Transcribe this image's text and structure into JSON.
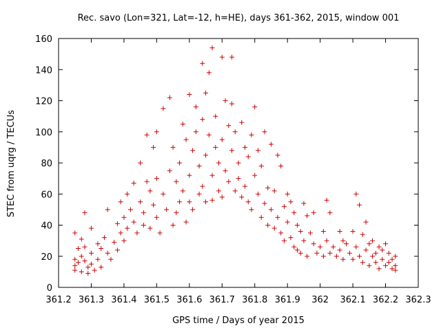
{
  "chart_data": {
    "type": "scatter",
    "title": "Rec. savo (Lon=321, Lat=-12, h=HE), days 361-362, 2015, window 001",
    "xlabel": "GPS time / Days of year 2015",
    "ylabel": "STEC from uqrg / TECUs",
    "xlim": [
      361.2,
      362.3
    ],
    "ylim": [
      0,
      160
    ],
    "xticks": [
      "361.2",
      "361.3",
      "361.4",
      "361.5",
      "361.6",
      "361.7",
      "361.8",
      "361.9",
      "362",
      "362.1",
      "362.2",
      "362.3"
    ],
    "yticks": [
      "0",
      "20",
      "40",
      "60",
      "80",
      "100",
      "120",
      "140",
      "160"
    ],
    "grid": false,
    "marker": "+",
    "series": [
      {
        "color": "#cc0000",
        "points": [
          [
            361.25,
            35
          ],
          [
            361.25,
            18
          ],
          [
            361.25,
            14
          ],
          [
            361.25,
            11
          ],
          [
            361.26,
            25
          ],
          [
            361.26,
            16
          ],
          [
            361.27,
            31
          ],
          [
            361.27,
            20
          ],
          [
            361.27,
            10
          ],
          [
            361.28,
            48
          ],
          [
            361.28,
            26
          ],
          [
            361.28,
            17
          ],
          [
            361.29,
            13
          ],
          [
            361.29,
            9
          ],
          [
            361.3,
            38
          ],
          [
            361.3,
            22
          ],
          [
            361.3,
            15
          ],
          [
            361.31,
            11
          ],
          [
            361.32,
            18
          ],
          [
            361.32,
            28
          ],
          [
            361.33,
            13
          ],
          [
            361.33,
            25
          ],
          [
            361.34,
            32
          ],
          [
            361.35,
            50
          ],
          [
            361.35,
            22
          ],
          [
            361.36,
            18
          ],
          [
            361.37,
            29
          ],
          [
            361.38,
            24
          ],
          [
            361.38,
            41
          ],
          [
            361.39,
            55
          ],
          [
            361.39,
            35
          ],
          [
            361.4,
            30
          ],
          [
            361.4,
            45
          ],
          [
            361.41,
            60
          ],
          [
            361.41,
            38
          ],
          [
            361.42,
            50
          ],
          [
            361.43,
            67
          ],
          [
            361.43,
            42
          ],
          [
            361.44,
            35
          ],
          [
            361.45,
            55
          ],
          [
            361.45,
            80
          ],
          [
            361.46,
            48
          ],
          [
            361.46,
            40
          ],
          [
            361.47,
            98
          ],
          [
            361.47,
            68
          ],
          [
            361.48,
            62
          ],
          [
            361.48,
            38
          ],
          [
            361.49,
            90
          ],
          [
            361.49,
            53
          ],
          [
            361.5,
            100
          ],
          [
            361.5,
            70
          ],
          [
            361.5,
            45
          ],
          [
            361.51,
            35
          ],
          [
            361.52,
            115
          ],
          [
            361.52,
            60
          ],
          [
            361.53,
            50
          ],
          [
            361.54,
            122
          ],
          [
            361.54,
            75
          ],
          [
            361.55,
            90
          ],
          [
            361.55,
            40
          ],
          [
            361.56,
            68
          ],
          [
            361.56,
            48
          ],
          [
            361.57,
            80
          ],
          [
            361.57,
            55
          ],
          [
            361.58,
            105
          ],
          [
            361.58,
            62
          ],
          [
            361.59,
            95
          ],
          [
            361.59,
            42
          ],
          [
            361.6,
            124
          ],
          [
            361.6,
            72
          ],
          [
            361.6,
            55
          ],
          [
            361.61,
            88
          ],
          [
            361.61,
            50
          ],
          [
            361.62,
            116
          ],
          [
            361.62,
            100
          ],
          [
            361.63,
            78
          ],
          [
            361.63,
            60
          ],
          [
            361.64,
            144
          ],
          [
            361.64,
            108
          ],
          [
            361.64,
            65
          ],
          [
            361.65,
            125
          ],
          [
            361.65,
            85
          ],
          [
            361.65,
            55
          ],
          [
            361.66,
            138
          ],
          [
            361.66,
            98
          ],
          [
            361.67,
            154
          ],
          [
            361.67,
            72
          ],
          [
            361.67,
            56
          ],
          [
            361.68,
            110
          ],
          [
            361.68,
            90
          ],
          [
            361.69,
            80
          ],
          [
            361.69,
            62
          ],
          [
            361.7,
            148
          ],
          [
            361.7,
            95
          ],
          [
            361.7,
            58
          ],
          [
            361.71,
            120
          ],
          [
            361.71,
            75
          ],
          [
            361.72,
            104
          ],
          [
            361.72,
            68
          ],
          [
            361.73,
            148
          ],
          [
            361.73,
            118
          ],
          [
            361.73,
            88
          ],
          [
            361.74,
            100
          ],
          [
            361.74,
            62
          ],
          [
            361.75,
            80
          ],
          [
            361.75,
            70
          ],
          [
            361.76,
            106
          ],
          [
            361.76,
            58
          ],
          [
            361.77,
            90
          ],
          [
            361.77,
            65
          ],
          [
            361.78,
            84
          ],
          [
            361.78,
            55
          ],
          [
            361.79,
            98
          ],
          [
            361.79,
            50
          ],
          [
            361.8,
            116
          ],
          [
            361.8,
            72
          ],
          [
            361.81,
            88
          ],
          [
            361.81,
            60
          ],
          [
            361.82,
            78
          ],
          [
            361.82,
            45
          ],
          [
            361.83,
            100
          ],
          [
            361.83,
            54
          ],
          [
            361.84,
            64
          ],
          [
            361.84,
            40
          ],
          [
            361.85,
            92
          ],
          [
            361.85,
            50
          ],
          [
            361.86,
            62
          ],
          [
            361.86,
            38
          ],
          [
            361.87,
            85
          ],
          [
            361.87,
            45
          ],
          [
            361.88,
            78
          ],
          [
            361.88,
            35
          ],
          [
            361.89,
            52
          ],
          [
            361.89,
            30
          ],
          [
            361.9,
            60
          ],
          [
            361.9,
            42
          ],
          [
            361.91,
            55
          ],
          [
            361.91,
            32
          ],
          [
            361.92,
            48
          ],
          [
            361.92,
            26
          ],
          [
            361.93,
            40
          ],
          [
            361.93,
            24
          ],
          [
            361.94,
            36
          ],
          [
            361.94,
            22
          ],
          [
            361.95,
            54
          ],
          [
            361.95,
            30
          ],
          [
            361.96,
            46
          ],
          [
            361.96,
            20
          ],
          [
            361.97,
            35
          ],
          [
            361.98,
            48
          ],
          [
            361.98,
            28
          ],
          [
            361.99,
            22
          ],
          [
            362.0,
            26
          ],
          [
            362.01,
            36
          ],
          [
            362.01,
            20
          ],
          [
            362.02,
            56
          ],
          [
            362.02,
            30
          ],
          [
            362.03,
            48
          ],
          [
            362.03,
            22
          ],
          [
            362.04,
            26
          ],
          [
            362.05,
            20
          ],
          [
            362.06,
            36
          ],
          [
            362.06,
            24
          ],
          [
            362.07,
            30
          ],
          [
            362.07,
            18
          ],
          [
            362.08,
            28
          ],
          [
            362.09,
            22
          ],
          [
            362.1,
            36
          ],
          [
            362.1,
            18
          ],
          [
            362.11,
            60
          ],
          [
            362.11,
            26
          ],
          [
            362.12,
            53
          ],
          [
            362.12,
            20
          ],
          [
            362.13,
            34
          ],
          [
            362.13,
            16
          ],
          [
            362.14,
            42
          ],
          [
            362.14,
            24
          ],
          [
            362.15,
            28
          ],
          [
            362.15,
            14
          ],
          [
            362.16,
            30
          ],
          [
            362.16,
            20
          ],
          [
            362.17,
            22
          ],
          [
            362.17,
            16
          ],
          [
            362.18,
            26
          ],
          [
            362.18,
            12
          ],
          [
            362.19,
            24
          ],
          [
            362.19,
            18
          ],
          [
            362.2,
            28
          ],
          [
            362.2,
            14
          ],
          [
            362.21,
            22
          ],
          [
            362.21,
            16
          ],
          [
            362.22,
            18
          ],
          [
            362.22,
            12
          ],
          [
            362.23,
            20
          ],
          [
            362.23,
            14
          ],
          [
            362.23,
            11
          ]
        ]
      }
    ]
  }
}
